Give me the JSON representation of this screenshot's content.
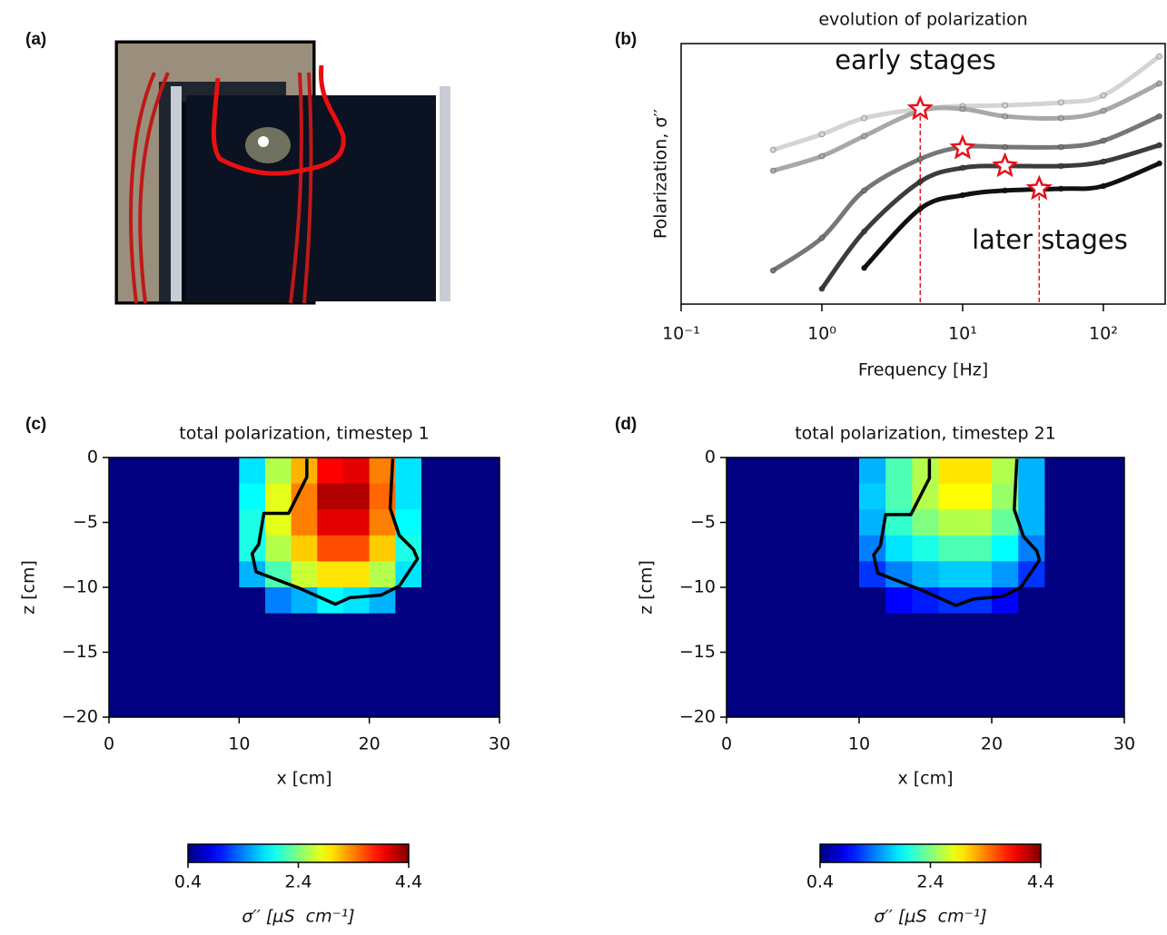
{
  "panel_labels": [
    "(a)",
    "(b)",
    "(c)",
    "(d)"
  ],
  "chart_data": [
    {
      "type": "line",
      "title": "evolution of polarization",
      "xlabel": "Frequency [Hz]",
      "ylabel": "Polarization, σ′′",
      "annotations": [
        "early stages",
        "later stages"
      ],
      "xscale": "log",
      "xlim": [
        0.1,
        275
      ],
      "ylim": [
        0,
        10
      ],
      "xticks": [
        {
          "value": 0.1,
          "label": "10⁻¹"
        },
        {
          "value": 1,
          "label": "10⁰"
        },
        {
          "value": 10,
          "label": "10¹"
        },
        {
          "value": 100,
          "label": "10²"
        }
      ],
      "x": [
        0.45,
        1,
        2,
        5,
        10,
        20,
        50,
        100,
        250
      ],
      "series": [
        {
          "color": "#d4d4d4",
          "values": [
            5.92,
            6.52,
            7.14,
            7.49,
            7.6,
            7.63,
            7.74,
            8.01,
            9.51
          ]
        },
        {
          "color": "#a8a8a8",
          "values": [
            5.12,
            5.68,
            6.45,
            7.42,
            7.49,
            7.21,
            7.14,
            7.42,
            8.47
          ]
        },
        {
          "color": "#777777",
          "values": [
            1.29,
            2.54,
            4.36,
            5.57,
            6.03,
            6.03,
            6.03,
            6.27,
            7.21
          ]
        },
        {
          "color": "#3c3c3c",
          "values": [
            null,
            0.59,
            2.79,
            4.7,
            5.23,
            5.3,
            5.3,
            5.47,
            6.1
          ]
        },
        {
          "color": "#111111",
          "values": [
            null,
            null,
            1.39,
            3.66,
            4.18,
            4.36,
            4.43,
            4.53,
            5.4
          ]
        }
      ],
      "markers": {
        "color": "#e8111a",
        "x": [
          5,
          10,
          20,
          35
        ],
        "values": [
          7.49,
          5.99,
          5.3,
          4.43
        ]
      },
      "droplines": {
        "color": "#e8111a",
        "x": [
          5,
          35
        ],
        "values": [
          7.49,
          4.43
        ]
      }
    },
    {
      "type": "heatmap",
      "title": "total polarization, timestep 1",
      "xlabel": "x [cm]",
      "ylabel": "z [cm]",
      "xlim": [
        0,
        30
      ],
      "ylim": [
        -20,
        0
      ],
      "xticks": [
        0,
        10,
        20,
        30
      ],
      "yticks": [
        0,
        {
          "value": -5,
          "label": "−5"
        },
        {
          "value": -10,
          "label": "−10"
        },
        {
          "value": -15,
          "label": "−15"
        },
        {
          "value": -20,
          "label": "−20"
        }
      ],
      "x": [
        1,
        3,
        5,
        7,
        9,
        11,
        13,
        15,
        17,
        19,
        21,
        23,
        25,
        27,
        29
      ],
      "y": [
        -1,
        -3,
        -5,
        -7,
        -9,
        -11,
        -13,
        -15,
        -17,
        -19
      ],
      "values": [
        [
          0.4,
          0.4,
          0.4,
          0.4,
          0.4,
          1.8,
          2.6,
          3.2,
          3.9,
          4.0,
          3.4,
          1.8,
          0.4,
          0.4,
          0.4
        ],
        [
          0.4,
          0.4,
          0.4,
          0.4,
          0.4,
          1.9,
          2.8,
          3.4,
          4.2,
          4.2,
          3.5,
          1.8,
          0.4,
          0.4,
          0.4
        ],
        [
          0.4,
          0.4,
          0.4,
          0.4,
          0.4,
          2.0,
          2.8,
          3.4,
          4.0,
          4.0,
          3.4,
          1.9,
          0.4,
          0.4,
          0.4
        ],
        [
          0.4,
          0.4,
          0.4,
          0.4,
          0.4,
          2.0,
          2.6,
          3.1,
          3.6,
          3.6,
          3.1,
          2.0,
          0.4,
          0.4,
          0.4
        ],
        [
          0.4,
          0.4,
          0.4,
          0.4,
          0.4,
          1.6,
          2.2,
          2.7,
          3.0,
          3.0,
          2.6,
          1.8,
          0.4,
          0.4,
          0.4
        ],
        [
          0.4,
          0.4,
          0.4,
          0.4,
          0.4,
          0.4,
          1.4,
          1.6,
          1.9,
          1.8,
          1.6,
          0.4,
          0.4,
          0.4,
          0.4
        ],
        [
          0.4,
          0.4,
          0.4,
          0.4,
          0.4,
          0.4,
          0.4,
          0.4,
          0.4,
          0.4,
          0.4,
          0.4,
          0.4,
          0.4,
          0.4
        ],
        [
          0.4,
          0.4,
          0.4,
          0.4,
          0.4,
          0.4,
          0.4,
          0.4,
          0.4,
          0.4,
          0.4,
          0.4,
          0.4,
          0.4,
          0.4
        ],
        [
          0.4,
          0.4,
          0.4,
          0.4,
          0.4,
          0.4,
          0.4,
          0.4,
          0.4,
          0.4,
          0.4,
          0.4,
          0.4,
          0.4,
          0.4
        ],
        [
          0.4,
          0.4,
          0.4,
          0.4,
          0.4,
          0.4,
          0.4,
          0.4,
          0.4,
          0.4,
          0.4,
          0.4,
          0.4,
          0.4,
          0.4
        ]
      ],
      "outline": {
        "x": [
          15.2,
          15.2,
          13.8,
          11.9,
          11.5,
          11.0,
          11.3,
          14.7,
          17.4,
          18.5,
          20.9,
          22.3,
          23.7,
          23.4,
          22.3,
          21.6,
          21.8
        ],
        "y": [
          -0.1,
          -1.5,
          -4.3,
          -4.3,
          -6.7,
          -7.4,
          -8.8,
          -10.1,
          -11.3,
          -10.8,
          -10.6,
          -9.9,
          -7.8,
          -7.1,
          -6.0,
          -3.9,
          -0.1
        ]
      },
      "colorbar": {
        "colormap": "jet",
        "lim": [
          0.4,
          4.4
        ],
        "ticks": [
          0.4,
          2.4,
          4.4
        ],
        "label": "σ′′ [μS  cm⁻¹]"
      }
    },
    {
      "type": "heatmap",
      "title": "total polarization, timestep 21",
      "xlabel": "x [cm]",
      "ylabel": "z [cm]",
      "xlim": [
        0,
        30
      ],
      "ylim": [
        -20,
        0
      ],
      "xticks": [
        0,
        10,
        20,
        30
      ],
      "yticks": [
        0,
        {
          "value": -5,
          "label": "−5"
        },
        {
          "value": -10,
          "label": "−10"
        },
        {
          "value": -15,
          "label": "−15"
        },
        {
          "value": -20,
          "label": "−20"
        }
      ],
      "x": [
        1,
        3,
        5,
        7,
        9,
        11,
        13,
        15,
        17,
        19,
        21,
        23,
        25,
        27,
        29
      ],
      "y": [
        -1,
        -3,
        -5,
        -7,
        -9,
        -11,
        -13,
        -15,
        -17,
        -19
      ],
      "values": [
        [
          0.4,
          0.4,
          0.4,
          0.4,
          0.4,
          1.6,
          2.2,
          2.6,
          3.0,
          3.0,
          2.6,
          1.6,
          0.4,
          0.4,
          0.4
        ],
        [
          0.4,
          0.4,
          0.4,
          0.4,
          0.4,
          1.7,
          2.2,
          2.6,
          2.9,
          2.9,
          2.5,
          1.6,
          0.4,
          0.4,
          0.4
        ],
        [
          0.4,
          0.4,
          0.4,
          0.4,
          0.4,
          1.6,
          2.1,
          2.4,
          2.6,
          2.6,
          2.3,
          1.6,
          0.4,
          0.4,
          0.4
        ],
        [
          0.4,
          0.4,
          0.4,
          0.4,
          0.4,
          1.4,
          1.8,
          2.0,
          2.2,
          2.2,
          1.9,
          1.4,
          0.4,
          0.4,
          0.4
        ],
        [
          0.4,
          0.4,
          0.4,
          0.4,
          0.4,
          1.1,
          1.4,
          1.6,
          1.7,
          1.7,
          1.5,
          1.1,
          0.4,
          0.4,
          0.4
        ],
        [
          0.4,
          0.4,
          0.4,
          0.4,
          0.4,
          0.4,
          0.9,
          1.0,
          1.1,
          1.1,
          0.9,
          0.4,
          0.4,
          0.4,
          0.4
        ],
        [
          0.4,
          0.4,
          0.4,
          0.4,
          0.4,
          0.4,
          0.4,
          0.4,
          0.4,
          0.4,
          0.4,
          0.4,
          0.4,
          0.4,
          0.4
        ],
        [
          0.4,
          0.4,
          0.4,
          0.4,
          0.4,
          0.4,
          0.4,
          0.4,
          0.4,
          0.4,
          0.4,
          0.4,
          0.4,
          0.4,
          0.4
        ],
        [
          0.4,
          0.4,
          0.4,
          0.4,
          0.4,
          0.4,
          0.4,
          0.4,
          0.4,
          0.4,
          0.4,
          0.4,
          0.4,
          0.4,
          0.4
        ],
        [
          0.4,
          0.4,
          0.4,
          0.4,
          0.4,
          0.4,
          0.4,
          0.4,
          0.4,
          0.4,
          0.4,
          0.4,
          0.4,
          0.4,
          0.4
        ]
      ],
      "outline": {
        "x": [
          15.3,
          15.3,
          13.9,
          12.0,
          11.6,
          11.1,
          11.4,
          14.7,
          17.3,
          18.6,
          20.8,
          22.2,
          23.6,
          23.4,
          22.4,
          21.7,
          21.9
        ],
        "y": [
          -0.1,
          -1.6,
          -4.4,
          -4.4,
          -6.8,
          -7.5,
          -8.9,
          -10.2,
          -11.4,
          -10.9,
          -10.7,
          -10.0,
          -7.9,
          -7.2,
          -6.1,
          -4.0,
          -0.1
        ]
      },
      "colorbar": {
        "colormap": "jet",
        "lim": [
          0.4,
          4.4
        ],
        "ticks": [
          0.4,
          2.4,
          4.4
        ],
        "label": "σ′′ [μS  cm⁻¹]"
      }
    }
  ]
}
